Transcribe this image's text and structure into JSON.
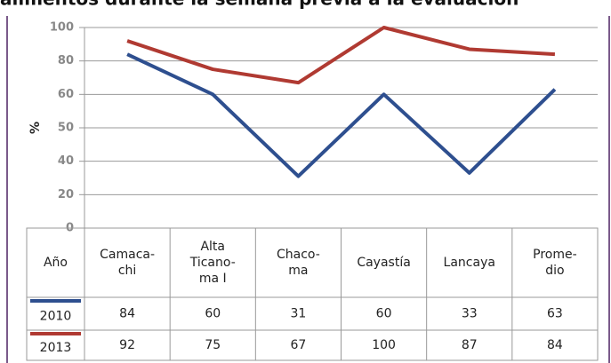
{
  "chart_data": {
    "type": "line",
    "title": "alimentos durante la semana previa a la evaluación",
    "y_label": "%",
    "table_header": "Año",
    "categories": [
      [
        "Camaca-",
        "chi"
      ],
      [
        "Alta",
        "Ticano-",
        "ma I"
      ],
      [
        "Chaco-",
        "ma"
      ],
      [
        "Cayastía"
      ],
      [
        "Lancaya"
      ],
      [
        "Prome-",
        "dio"
      ]
    ],
    "series": [
      {
        "name": "2010",
        "color": "#2e4f8f",
        "values": [
          84,
          60,
          31,
          60,
          33,
          63
        ]
      },
      {
        "name": "2013",
        "color": "#b03a32",
        "values": [
          92,
          75,
          67,
          100,
          87,
          84
        ]
      }
    ],
    "ylim": [
      0,
      100
    ],
    "yticks": [
      0,
      20,
      40,
      50,
      60,
      80,
      100
    ],
    "grid": true
  }
}
